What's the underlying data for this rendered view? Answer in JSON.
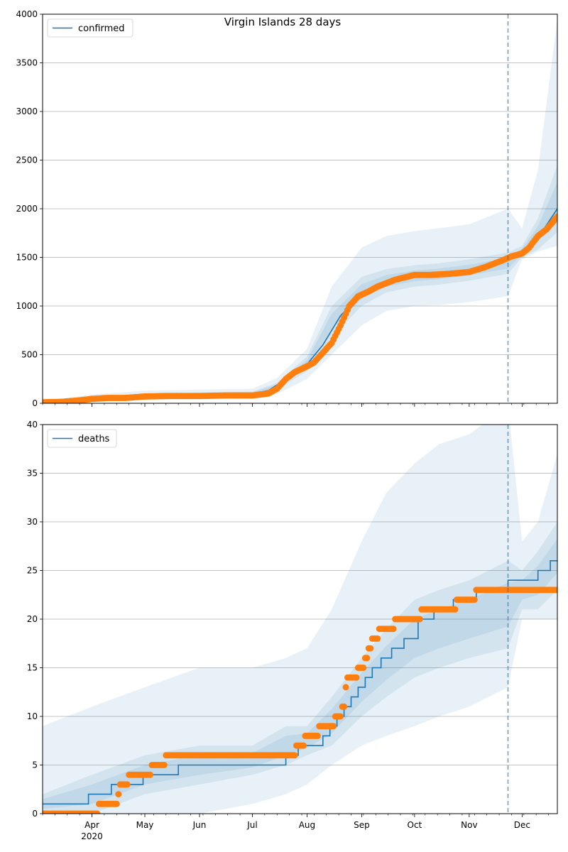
{
  "title": "Virgin Islands 28 days",
  "colors": {
    "line": "#1f77b4",
    "points": "#ff7f0e",
    "band": "#1f77b4",
    "grid": "#b0b0b0"
  },
  "x_axis": {
    "range": [
      "2020-03-04",
      "2020-12-21"
    ],
    "tick_labels": [
      {
        "date": "2020-04-01",
        "label": "Apr",
        "sublabel": "2020"
      },
      {
        "date": "2020-05-01",
        "label": "May",
        "sublabel": ""
      },
      {
        "date": "2020-06-01",
        "label": "Jun",
        "sublabel": ""
      },
      {
        "date": "2020-07-01",
        "label": "Jul",
        "sublabel": ""
      },
      {
        "date": "2020-08-01",
        "label": "Aug",
        "sublabel": ""
      },
      {
        "date": "2020-09-01",
        "label": "Sep",
        "sublabel": ""
      },
      {
        "date": "2020-10-01",
        "label": "Oct",
        "sublabel": ""
      },
      {
        "date": "2020-11-01",
        "label": "Nov",
        "sublabel": ""
      },
      {
        "date": "2020-12-01",
        "label": "Dec",
        "sublabel": ""
      }
    ],
    "forecast_start": "2020-11-23"
  },
  "chart_data": [
    {
      "type": "line",
      "legend": "confirmed",
      "legend_position": "upper-left",
      "grid": "horizontal",
      "ylim": [
        0,
        4000
      ],
      "yticks": [
        0,
        500,
        1000,
        1500,
        2000,
        2500,
        3000,
        3500,
        4000
      ],
      "median": {
        "x": [
          "2020-03-04",
          "2020-03-20",
          "2020-04-01",
          "2020-04-15",
          "2020-05-01",
          "2020-06-01",
          "2020-07-01",
          "2020-07-10",
          "2020-07-20",
          "2020-08-01",
          "2020-08-10",
          "2020-08-20",
          "2020-09-01",
          "2020-09-10",
          "2020-09-20",
          "2020-10-01",
          "2020-10-15",
          "2020-11-01",
          "2020-11-10",
          "2020-11-23",
          "2020-12-01",
          "2020-12-10",
          "2020-12-21"
        ],
        "y": [
          5,
          15,
          40,
          65,
          80,
          95,
          100,
          130,
          250,
          400,
          600,
          900,
          1130,
          1200,
          1270,
          1310,
          1330,
          1360,
          1400,
          1500,
          1560,
          1700,
          2000
        ]
      },
      "bands": {
        "x": [
          "2020-03-04",
          "2020-04-01",
          "2020-05-01",
          "2020-06-01",
          "2020-07-01",
          "2020-07-15",
          "2020-08-01",
          "2020-08-15",
          "2020-09-01",
          "2020-09-15",
          "2020-10-01",
          "2020-10-15",
          "2020-11-01",
          "2020-11-23",
          "2020-12-01",
          "2020-12-10",
          "2020-12-21"
        ],
        "lower_outer": [
          0,
          15,
          40,
          55,
          60,
          95,
          250,
          500,
          800,
          950,
          1000,
          1010,
          1040,
          1100,
          1480,
          1560,
          1620
        ],
        "lower_inner": [
          2,
          30,
          65,
          80,
          90,
          140,
          330,
          680,
          1000,
          1140,
          1200,
          1220,
          1260,
          1330,
          1500,
          1580,
          1760
        ],
        "upper_inner": [
          10,
          60,
          95,
          110,
          120,
          210,
          480,
          1000,
          1300,
          1380,
          1420,
          1440,
          1480,
          1550,
          1620,
          1900,
          2450
        ],
        "upper_outer": [
          20,
          90,
          130,
          140,
          150,
          260,
          560,
          1200,
          1600,
          1720,
          1770,
          1800,
          1840,
          2000,
          1800,
          2400,
          3950
        ]
      },
      "observed": {
        "x": [
          "2020-03-04",
          "2020-03-15",
          "2020-03-25",
          "2020-04-01",
          "2020-04-10",
          "2020-04-20",
          "2020-05-01",
          "2020-05-15",
          "2020-06-01",
          "2020-06-15",
          "2020-07-01",
          "2020-07-10",
          "2020-07-15",
          "2020-07-20",
          "2020-07-25",
          "2020-08-01",
          "2020-08-05",
          "2020-08-10",
          "2020-08-15",
          "2020-08-20",
          "2020-08-25",
          "2020-08-30",
          "2020-09-05",
          "2020-09-10",
          "2020-09-20",
          "2020-10-01",
          "2020-10-10",
          "2020-10-20",
          "2020-11-01",
          "2020-11-10",
          "2020-11-20",
          "2020-11-25",
          "2020-12-01",
          "2020-12-05",
          "2020-12-10",
          "2020-12-15",
          "2020-12-21"
        ],
        "y": [
          10,
          15,
          30,
          45,
          55,
          55,
          70,
          75,
          75,
          80,
          80,
          100,
          150,
          250,
          320,
          380,
          420,
          520,
          620,
          800,
          1000,
          1100,
          1150,
          1200,
          1270,
          1320,
          1320,
          1330,
          1350,
          1400,
          1470,
          1510,
          1540,
          1600,
          1720,
          1790,
          1920
        ]
      }
    },
    {
      "type": "line",
      "legend": "deaths",
      "legend_position": "upper-left",
      "grid": "horizontal",
      "ylim": [
        0,
        40
      ],
      "yticks": [
        0,
        5,
        10,
        15,
        20,
        25,
        30,
        35,
        40
      ],
      "median": {
        "x": [
          "2020-03-04",
          "2020-03-30",
          "2020-04-12",
          "2020-04-18",
          "2020-04-30",
          "2020-05-20",
          "2020-07-13",
          "2020-07-20",
          "2020-07-27",
          "2020-08-03",
          "2020-08-10",
          "2020-08-14",
          "2020-08-18",
          "2020-08-22",
          "2020-08-26",
          "2020-08-30",
          "2020-09-03",
          "2020-09-07",
          "2020-09-12",
          "2020-09-18",
          "2020-09-25",
          "2020-10-03",
          "2020-10-12",
          "2020-10-23",
          "2020-11-05",
          "2020-11-23",
          "2020-12-01",
          "2020-12-10",
          "2020-12-17",
          "2020-12-21"
        ],
        "y": [
          1,
          2,
          3,
          3,
          4,
          5,
          5,
          6,
          7,
          7,
          8,
          9,
          10,
          11,
          12,
          13,
          14,
          15,
          16,
          17,
          18,
          20,
          21,
          22,
          23,
          24,
          24,
          25,
          26,
          26
        ]
      },
      "bands": {
        "x": [
          "2020-03-04",
          "2020-04-01",
          "2020-05-01",
          "2020-06-01",
          "2020-07-01",
          "2020-07-20",
          "2020-08-01",
          "2020-08-15",
          "2020-09-01",
          "2020-09-15",
          "2020-10-01",
          "2020-10-15",
          "2020-11-01",
          "2020-11-23",
          "2020-12-01",
          "2020-12-10",
          "2020-12-21"
        ],
        "lower_outer": [
          0,
          0,
          0,
          0,
          1,
          2,
          3,
          5,
          7,
          8,
          9,
          10,
          11,
          13,
          20,
          20,
          20
        ],
        "lower_inner": [
          0,
          0,
          2,
          3,
          4,
          5,
          6,
          7,
          10,
          12,
          14,
          15,
          16,
          17,
          21,
          21,
          23
        ],
        "upper_inner": [
          2,
          4,
          6,
          7,
          7,
          9,
          9,
          12,
          16,
          19,
          22,
          23,
          24,
          26,
          25,
          27,
          30
        ],
        "upper_outer": [
          9,
          11,
          13,
          15,
          15,
          16,
          17,
          21,
          28,
          33,
          36,
          38,
          39,
          42,
          28,
          30,
          37
        ]
      },
      "observed": {
        "x": [
          "2020-03-04",
          "2020-04-04",
          "2020-04-05",
          "2020-04-15",
          "2020-04-17",
          "2020-04-27",
          "2020-05-12",
          "2020-05-13",
          "2020-07-24",
          "2020-07-28",
          "2020-08-03",
          "2020-08-13",
          "2020-08-20",
          "2020-08-22",
          "2020-08-24",
          "2020-08-28",
          "2020-09-01",
          "2020-09-04",
          "2020-09-08",
          "2020-09-13",
          "2020-09-26",
          "2020-10-14",
          "2020-11-04",
          "2020-11-05",
          "2020-12-21"
        ],
        "y": [
          0,
          0,
          1,
          1,
          3,
          4,
          5,
          6,
          6,
          7,
          8,
          9,
          10,
          11,
          14,
          14,
          15,
          16,
          18,
          19,
          20,
          21,
          22,
          23,
          23
        ]
      }
    }
  ]
}
